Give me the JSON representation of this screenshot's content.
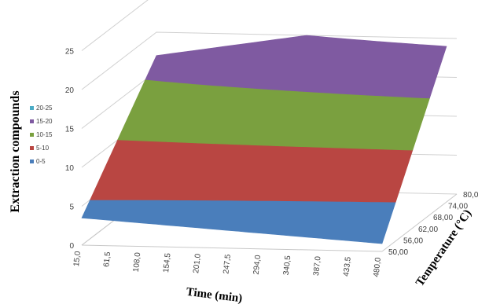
{
  "chart_data": {
    "type": "surface",
    "zlabel": "Extraction compounds",
    "xlabel": "Time (min)",
    "ylabel": "Temperature (°C)",
    "z_ticks": [
      "0",
      "5",
      "10",
      "15",
      "20",
      "25"
    ],
    "zlim": [
      0,
      25
    ],
    "time_ticks": [
      "15,0",
      "61,5",
      "108,0",
      "154,5",
      "201,0",
      "247,5",
      "294,0",
      "340,5",
      "387,0",
      "433,5",
      "480,0"
    ],
    "temp_ticks": [
      "50,00",
      "56,00",
      "62,00",
      "68,00",
      "74,00",
      "80,00"
    ],
    "legend": [
      {
        "label": "20-25",
        "color": "#4bacc6"
      },
      {
        "label": "15-20",
        "color": "#7f5aa1"
      },
      {
        "label": "10-15",
        "color": "#7aa03f"
      },
      {
        "label": "5-10",
        "color": "#b94642"
      },
      {
        "label": "0-5",
        "color": "#4a7ebb"
      }
    ],
    "surface_corners": [
      {
        "time": 15.0,
        "temperature": 50.0,
        "value": 3.5
      },
      {
        "time": 480.0,
        "temperature": 50.0,
        "value": 1.0
      },
      {
        "time": 15.0,
        "temperature": 80.0,
        "value": 17.0
      },
      {
        "time": 480.0,
        "temperature": 80.0,
        "value": 23.0
      }
    ],
    "grid": true,
    "legend_position": "left"
  }
}
